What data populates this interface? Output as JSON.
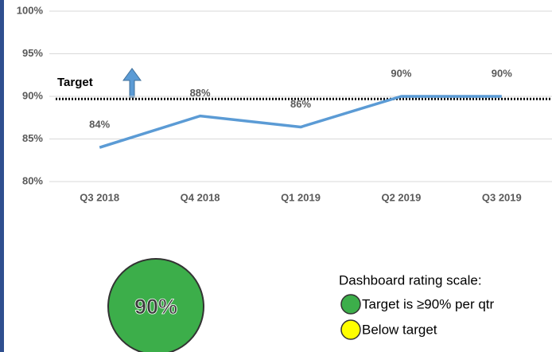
{
  "chart_data": {
    "type": "line",
    "categories": [
      "Q3 2018",
      "Q4 2018",
      "Q1 2019",
      "Q2 2019",
      "Q3 2019"
    ],
    "values": [
      84,
      87.7,
      86.4,
      90,
      90
    ],
    "value_labels": [
      "84%",
      "88%",
      "86%",
      "90%",
      "90%"
    ],
    "color": "#5b9bd5",
    "ylim": [
      80,
      100
    ],
    "yticks": [
      {
        "value": 80,
        "label": "80%"
      },
      {
        "value": 85,
        "label": "85%"
      },
      {
        "value": 90,
        "label": "90%"
      },
      {
        "value": 95,
        "label": "95%"
      },
      {
        "value": 100,
        "label": "100%"
      }
    ],
    "grid": true,
    "target": {
      "label": "Target",
      "value": 89.7
    }
  },
  "rating": {
    "label": "90%",
    "color": "#3cae4a"
  },
  "legend": {
    "title": "Dashboard rating scale:",
    "items": [
      {
        "text": "Target is ≥90% per qtr",
        "color": "#3cae4a"
      },
      {
        "text": "Below target",
        "color": "#ffff00"
      }
    ]
  }
}
